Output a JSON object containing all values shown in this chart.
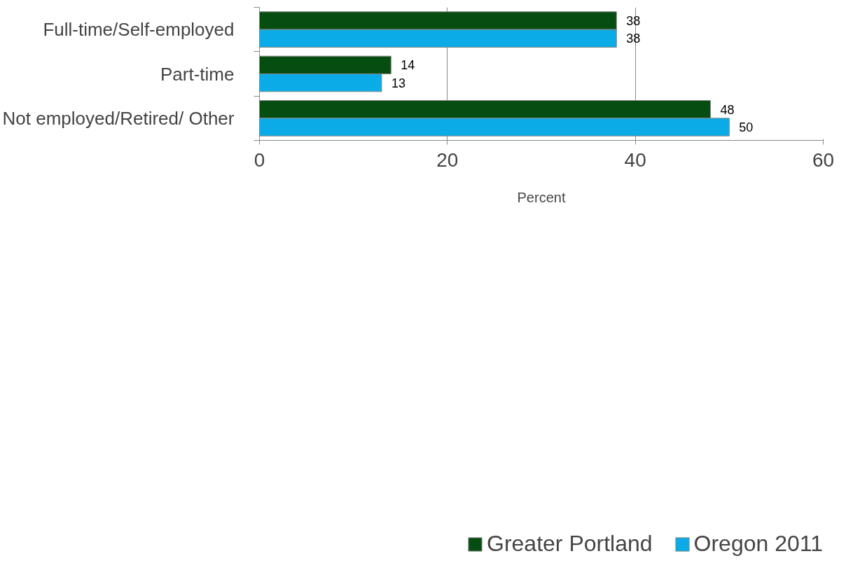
{
  "chart_data": {
    "type": "bar",
    "orientation": "horizontal",
    "categories": [
      "Full-time/Self-employed",
      "Part-time",
      "Not employed/Retired/ Other"
    ],
    "series": [
      {
        "name": "Greater Portland",
        "color": "#064d12",
        "values": [
          38,
          14,
          48
        ]
      },
      {
        "name": "Oregon 2011",
        "color": "#0aabe6",
        "values": [
          38,
          13,
          50
        ]
      }
    ],
    "xlabel": "Percent",
    "xlim": [
      0,
      60
    ],
    "xticks": [
      0,
      20,
      40,
      60
    ],
    "grid": "x",
    "legend": "bottom",
    "data_labels": true
  }
}
